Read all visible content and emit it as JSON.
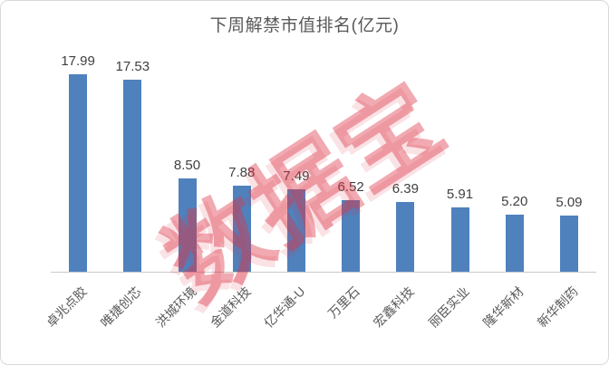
{
  "chart_data": {
    "type": "bar",
    "title": "下周解禁市值排名(亿元)",
    "categories": [
      "卓兆点胶",
      "唯捷创芯",
      "洪城环境",
      "金道科技",
      "亿华通-U",
      "万里石",
      "宏鑫科技",
      "丽臣实业",
      "隆华新材",
      "新华制药"
    ],
    "values": [
      17.99,
      17.53,
      8.5,
      7.88,
      7.49,
      6.52,
      6.39,
      5.91,
      5.2,
      5.09
    ],
    "value_labels": [
      "17.99",
      "17.53",
      "8.50",
      "7.88",
      "7.49",
      "6.52",
      "6.39",
      "5.91",
      "5.20",
      "5.09"
    ],
    "xlabel": "",
    "ylabel": "",
    "ylim": [
      0,
      20
    ],
    "grid": false,
    "legend": false,
    "bar_color": "#4f81bd",
    "axis_line_color": "#c9c9c9",
    "title_color": "#595959",
    "value_label_color": "#404040",
    "category_label_color": "#595959"
  },
  "watermark": {
    "text": "数据宝",
    "color": "rgba(221, 53, 69, 0.42)"
  }
}
